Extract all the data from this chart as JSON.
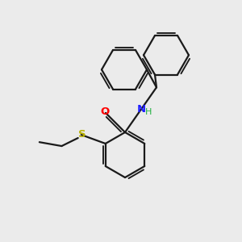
{
  "background_color": "#ebebeb",
  "bond_color": "#1a1a1a",
  "atom_colors": {
    "O": "#ff0000",
    "N": "#2020ff",
    "S": "#b8b000",
    "H": "#20b040",
    "C": "#1a1a1a"
  },
  "figsize": [
    3.0,
    3.0
  ],
  "dpi": 100,
  "lw": 1.6,
  "ring_r": 28
}
